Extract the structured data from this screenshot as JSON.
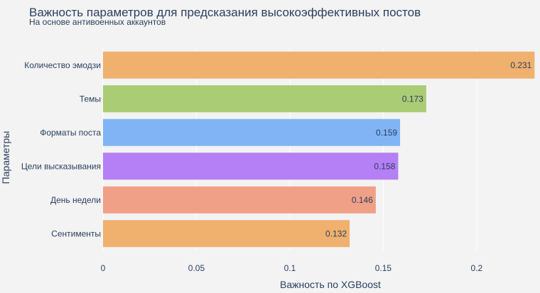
{
  "chart_data": {
    "type": "bar",
    "orientation": "horizontal",
    "title": "Важность параметров для предсказания высокоэффективных постов",
    "subtitle": "На основе антивоенных аккаунтов",
    "xlabel": "Важность по XGBoost",
    "ylabel": "Параметры",
    "xlim": [
      0,
      0.232
    ],
    "xticks": [
      {
        "value": 0,
        "label": "0"
      },
      {
        "value": 0.05,
        "label": "0.05"
      },
      {
        "value": 0.1,
        "label": "0.1"
      },
      {
        "value": 0.15,
        "label": "0.15"
      },
      {
        "value": 0.2,
        "label": "0.2"
      }
    ],
    "grid": true,
    "categories": [
      "Количество эмодзи",
      "Темы",
      "Форматы поста",
      "Цели высказывания",
      "День недели",
      "Сентименты"
    ],
    "values": [
      0.231,
      0.173,
      0.159,
      0.158,
      0.146,
      0.132
    ],
    "value_labels": [
      "0.231",
      "0.173",
      "0.159",
      "0.158",
      "0.146",
      "0.132"
    ],
    "colors": [
      "#f0b06e",
      "#a9cc75",
      "#80b4f5",
      "#b57ff5",
      "#f0a086",
      "#f0b06e"
    ],
    "background": "#f3f3f3",
    "gridline_color": "#ffffff"
  }
}
